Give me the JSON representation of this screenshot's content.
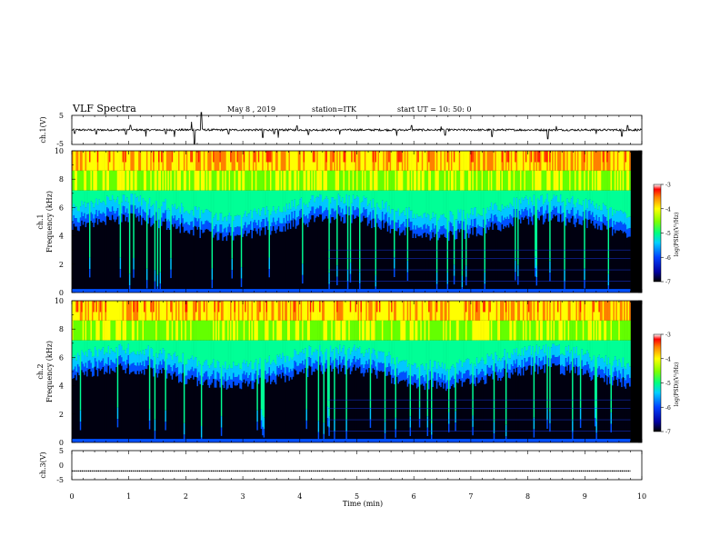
{
  "header": {
    "title": "VLF Spectra",
    "date": "May 8  , 2019",
    "station": "station=ITK",
    "start": "start  UT  =   10: 50: 0"
  },
  "chart_data": [
    {
      "type": "line",
      "name": "ch1-waveform",
      "ylabel": "ch.1(V)",
      "ylim": [
        -5,
        5
      ],
      "yticks": [
        "5",
        "-5"
      ],
      "xlim": [
        0,
        10
      ],
      "baseline": 0,
      "spikes": [
        {
          "x": 0.05,
          "y": -1.2
        },
        {
          "x": 0.43,
          "y": -1.4
        },
        {
          "x": 0.95,
          "y": -1.5
        },
        {
          "x": 1.03,
          "y": 1.6
        },
        {
          "x": 1.3,
          "y": -2.3
        },
        {
          "x": 1.65,
          "y": -1.3
        },
        {
          "x": 1.8,
          "y": -2.4
        },
        {
          "x": 2.1,
          "y": 2.8
        },
        {
          "x": 2.15,
          "y": -4.8
        },
        {
          "x": 2.27,
          "y": 6.0
        },
        {
          "x": 2.75,
          "y": -1.4
        },
        {
          "x": 3.35,
          "y": -2.6
        },
        {
          "x": 3.55,
          "y": -1.3
        },
        {
          "x": 3.62,
          "y": -2.7
        },
        {
          "x": 3.95,
          "y": 1.4
        },
        {
          "x": 4.15,
          "y": -1.6
        },
        {
          "x": 4.7,
          "y": -1.6
        },
        {
          "x": 5.7,
          "y": -2.0
        },
        {
          "x": 5.96,
          "y": 1.5
        },
        {
          "x": 6.48,
          "y": 1.2
        },
        {
          "x": 6.55,
          "y": -1.8
        },
        {
          "x": 7.37,
          "y": -2.3
        },
        {
          "x": 8.35,
          "y": -3.1
        },
        {
          "x": 8.5,
          "y": 1.3
        },
        {
          "x": 9.2,
          "y": -1.4
        },
        {
          "x": 9.65,
          "y": -2.2
        },
        {
          "x": 9.75,
          "y": 1.5
        }
      ]
    },
    {
      "type": "heatmap",
      "name": "ch1-spectrogram",
      "ylabel_top": "ch.1",
      "ylabel": "Frequency  (kHz)",
      "ylim": [
        0,
        10
      ],
      "yticks": [
        "0",
        "2",
        "4",
        "6",
        "8",
        "10"
      ],
      "xlim": [
        0,
        10
      ],
      "colorbar": {
        "label": "log(PSD)(V²/Hz)",
        "range": [
          -7,
          -3
        ],
        "ticks": [
          "-3",
          "-4",
          "-5",
          "-6",
          "-7"
        ]
      }
    },
    {
      "type": "heatmap",
      "name": "ch2-spectrogram",
      "ylabel_top": "ch.2",
      "ylabel": "Frequency  (kHz)",
      "ylim": [
        0,
        10
      ],
      "yticks": [
        "0",
        "2",
        "4",
        "6",
        "8",
        "10"
      ],
      "xlim": [
        0,
        10
      ],
      "colorbar": {
        "label": "log(PSD)(V²/Hz)",
        "range": [
          -7,
          -3
        ],
        "ticks": [
          "-3",
          "-4",
          "-5",
          "-6",
          "-7"
        ]
      }
    },
    {
      "type": "line",
      "name": "ch3-waveform",
      "ylabel": "ch.3(V)",
      "ylim": [
        -5,
        5
      ],
      "yticks": [
        "5",
        "0",
        "-5"
      ],
      "xlim": [
        0,
        10
      ],
      "baseline": -2
    }
  ],
  "xaxis": {
    "label": "Time  (min)",
    "ticks": [
      "0",
      "1",
      "2",
      "3",
      "4",
      "5",
      "6",
      "7",
      "8",
      "9",
      "10"
    ]
  },
  "colors": {
    "background": "#000000",
    "colormap": [
      "#000010",
      "#0000c8",
      "#0050ff",
      "#00c8ff",
      "#00ff96",
      "#64ff00",
      "#ffff00",
      "#ff8000",
      "#ff0000"
    ]
  }
}
